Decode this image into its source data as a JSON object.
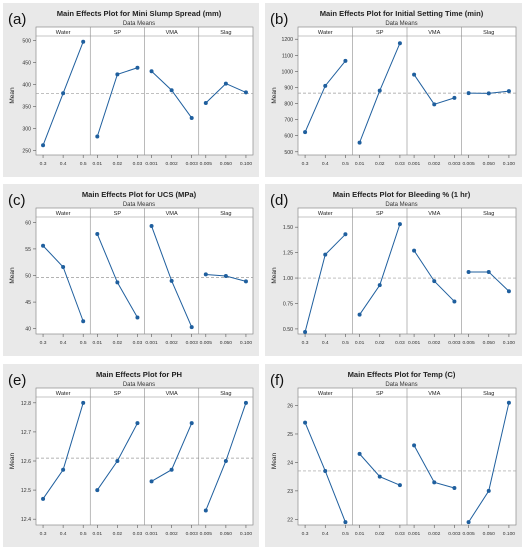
{
  "chart_data": [
    {
      "type": "line",
      "panel_label": "(a)",
      "title": "Main Effects Plot for Mini Slump Spread (mm)",
      "subtitle": "Data Means",
      "ylabel": "Mean",
      "ylim": [
        240,
        510
      ],
      "yticks": [
        "250",
        "300",
        "350",
        "400",
        "450",
        "500"
      ],
      "yticks_values": [
        250,
        300,
        350,
        400,
        450,
        500
      ],
      "mean_line": 380,
      "facets": [
        {
          "name": "Water",
          "x": [
            "0.3",
            "0.4",
            "0.5"
          ],
          "values": [
            262,
            380,
            497
          ]
        },
        {
          "name": "SP",
          "x": [
            "0.01",
            "0.02",
            "0.03"
          ],
          "values": [
            282,
            423,
            438
          ]
        },
        {
          "name": "VMA",
          "x": [
            "0.001",
            "0.002",
            "0.003"
          ],
          "values": [
            430,
            387,
            324
          ]
        },
        {
          "name": "Slag",
          "x": [
            "0.005",
            "0.050",
            "0.100"
          ],
          "values": [
            358,
            402,
            382
          ]
        }
      ]
    },
    {
      "type": "line",
      "panel_label": "(b)",
      "title": "Main Effects Plot for Initial Setting Time (min)",
      "subtitle": "Data Means",
      "ylabel": "Mean",
      "ylim": [
        480,
        1220
      ],
      "yticks": [
        "500",
        "600",
        "700",
        "800",
        "900",
        "1000",
        "1100",
        "1200"
      ],
      "yticks_values": [
        500,
        600,
        700,
        800,
        900,
        1000,
        1100,
        1200
      ],
      "mean_line": 865,
      "facets": [
        {
          "name": "Water",
          "x": [
            "0.3",
            "0.4",
            "0.5"
          ],
          "values": [
            622,
            910,
            1065
          ]
        },
        {
          "name": "SP",
          "x": [
            "0.01",
            "0.02",
            "0.03"
          ],
          "values": [
            557,
            880,
            1175
          ]
        },
        {
          "name": "VMA",
          "x": [
            "0.001",
            "0.002",
            "0.003"
          ],
          "values": [
            980,
            795,
            835
          ]
        },
        {
          "name": "Slag",
          "x": [
            "0.005",
            "0.050",
            "0.100"
          ],
          "values": [
            865,
            863,
            877
          ]
        }
      ]
    },
    {
      "type": "line",
      "panel_label": "(c)",
      "title": "Main Effects Plot for UCS (MPa)",
      "subtitle": "Data Means",
      "ylabel": "Mean",
      "ylim": [
        39,
        61
      ],
      "yticks": [
        "40",
        "45",
        "50",
        "55",
        "60"
      ],
      "yticks_values": [
        40,
        45,
        50,
        55,
        60
      ],
      "mean_line": 49.6,
      "facets": [
        {
          "name": "Water",
          "x": [
            "0.3",
            "0.4",
            "0.5"
          ],
          "values": [
            55.6,
            51.6,
            41.4
          ]
        },
        {
          "name": "SP",
          "x": [
            "0.01",
            "0.02",
            "0.03"
          ],
          "values": [
            57.8,
            48.7,
            42.1
          ]
        },
        {
          "name": "VMA",
          "x": [
            "0.001",
            "0.002",
            "0.003"
          ],
          "values": [
            59.3,
            49.0,
            40.3
          ]
        },
        {
          "name": "Slag",
          "x": [
            "0.005",
            "0.050",
            "0.100"
          ],
          "values": [
            50.2,
            49.9,
            48.9
          ]
        }
      ]
    },
    {
      "type": "line",
      "panel_label": "(d)",
      "title": "Main Effects Plot for Bleeding % (1 hr)",
      "subtitle": "Data Means",
      "ylabel": "Mean",
      "ylim": [
        0.45,
        1.6
      ],
      "yticks": [
        "0.50",
        "0.75",
        "1.00",
        "1.25",
        "1.50"
      ],
      "yticks_values": [
        0.5,
        0.75,
        1.0,
        1.25,
        1.5
      ],
      "mean_line": 1.0,
      "facets": [
        {
          "name": "Water",
          "x": [
            "0.3",
            "0.4",
            "0.5"
          ],
          "values": [
            0.47,
            1.23,
            1.43
          ]
        },
        {
          "name": "SP",
          "x": [
            "0.01",
            "0.02",
            "0.03"
          ],
          "values": [
            0.64,
            0.93,
            1.53
          ]
        },
        {
          "name": "VMA",
          "x": [
            "0.001",
            "0.002",
            "0.003"
          ],
          "values": [
            1.27,
            0.97,
            0.77
          ]
        },
        {
          "name": "Slag",
          "x": [
            "0.005",
            "0.050",
            "0.100"
          ],
          "values": [
            1.06,
            1.06,
            0.87
          ]
        }
      ]
    },
    {
      "type": "line",
      "panel_label": "(e)",
      "title": "Main Effects Plot for PH",
      "subtitle": "Data Means",
      "ylabel": "Mean",
      "ylim": [
        12.38,
        12.82
      ],
      "yticks": [
        "12.4",
        "12.5",
        "12.6",
        "12.7",
        "12.8"
      ],
      "yticks_values": [
        12.4,
        12.5,
        12.6,
        12.7,
        12.8
      ],
      "mean_line": 12.61,
      "facets": [
        {
          "name": "Water",
          "x": [
            "0.3",
            "0.4",
            "0.5"
          ],
          "values": [
            12.47,
            12.57,
            12.8
          ]
        },
        {
          "name": "SP",
          "x": [
            "0.01",
            "0.02",
            "0.03"
          ],
          "values": [
            12.5,
            12.6,
            12.73
          ]
        },
        {
          "name": "VMA",
          "x": [
            "0.001",
            "0.002",
            "0.003"
          ],
          "values": [
            12.53,
            12.57,
            12.73
          ]
        },
        {
          "name": "Slag",
          "x": [
            "0.005",
            "0.050",
            "0.100"
          ],
          "values": [
            12.43,
            12.6,
            12.8
          ]
        }
      ]
    },
    {
      "type": "line",
      "panel_label": "(f)",
      "title": "Main Effects Plot for Temp (C)",
      "subtitle": "Data Means",
      "ylabel": "Mean",
      "ylim": [
        21.8,
        26.3
      ],
      "yticks": [
        "22",
        "23",
        "24",
        "25",
        "26"
      ],
      "yticks_values": [
        22,
        23,
        24,
        25,
        26
      ],
      "mean_line": 23.7,
      "facets": [
        {
          "name": "Water",
          "x": [
            "0.3",
            "0.4",
            "0.5"
          ],
          "values": [
            25.4,
            23.7,
            21.9
          ]
        },
        {
          "name": "SP",
          "x": [
            "0.01",
            "0.02",
            "0.03"
          ],
          "values": [
            24.3,
            23.5,
            23.2
          ]
        },
        {
          "name": "VMA",
          "x": [
            "0.001",
            "0.002",
            "0.003"
          ],
          "values": [
            24.6,
            23.3,
            23.1
          ]
        },
        {
          "name": "Slag",
          "x": [
            "0.005",
            "0.050",
            "0.100"
          ],
          "values": [
            21.9,
            23.0,
            26.1
          ]
        }
      ]
    }
  ],
  "colors": {
    "series": "#1f5f9e",
    "reference_line": "#9a9a9a",
    "panel_background": "#e9e9e9",
    "plot_background": "#ffffff",
    "strip_background": "#ffffff",
    "border": "#8c8c8c"
  }
}
